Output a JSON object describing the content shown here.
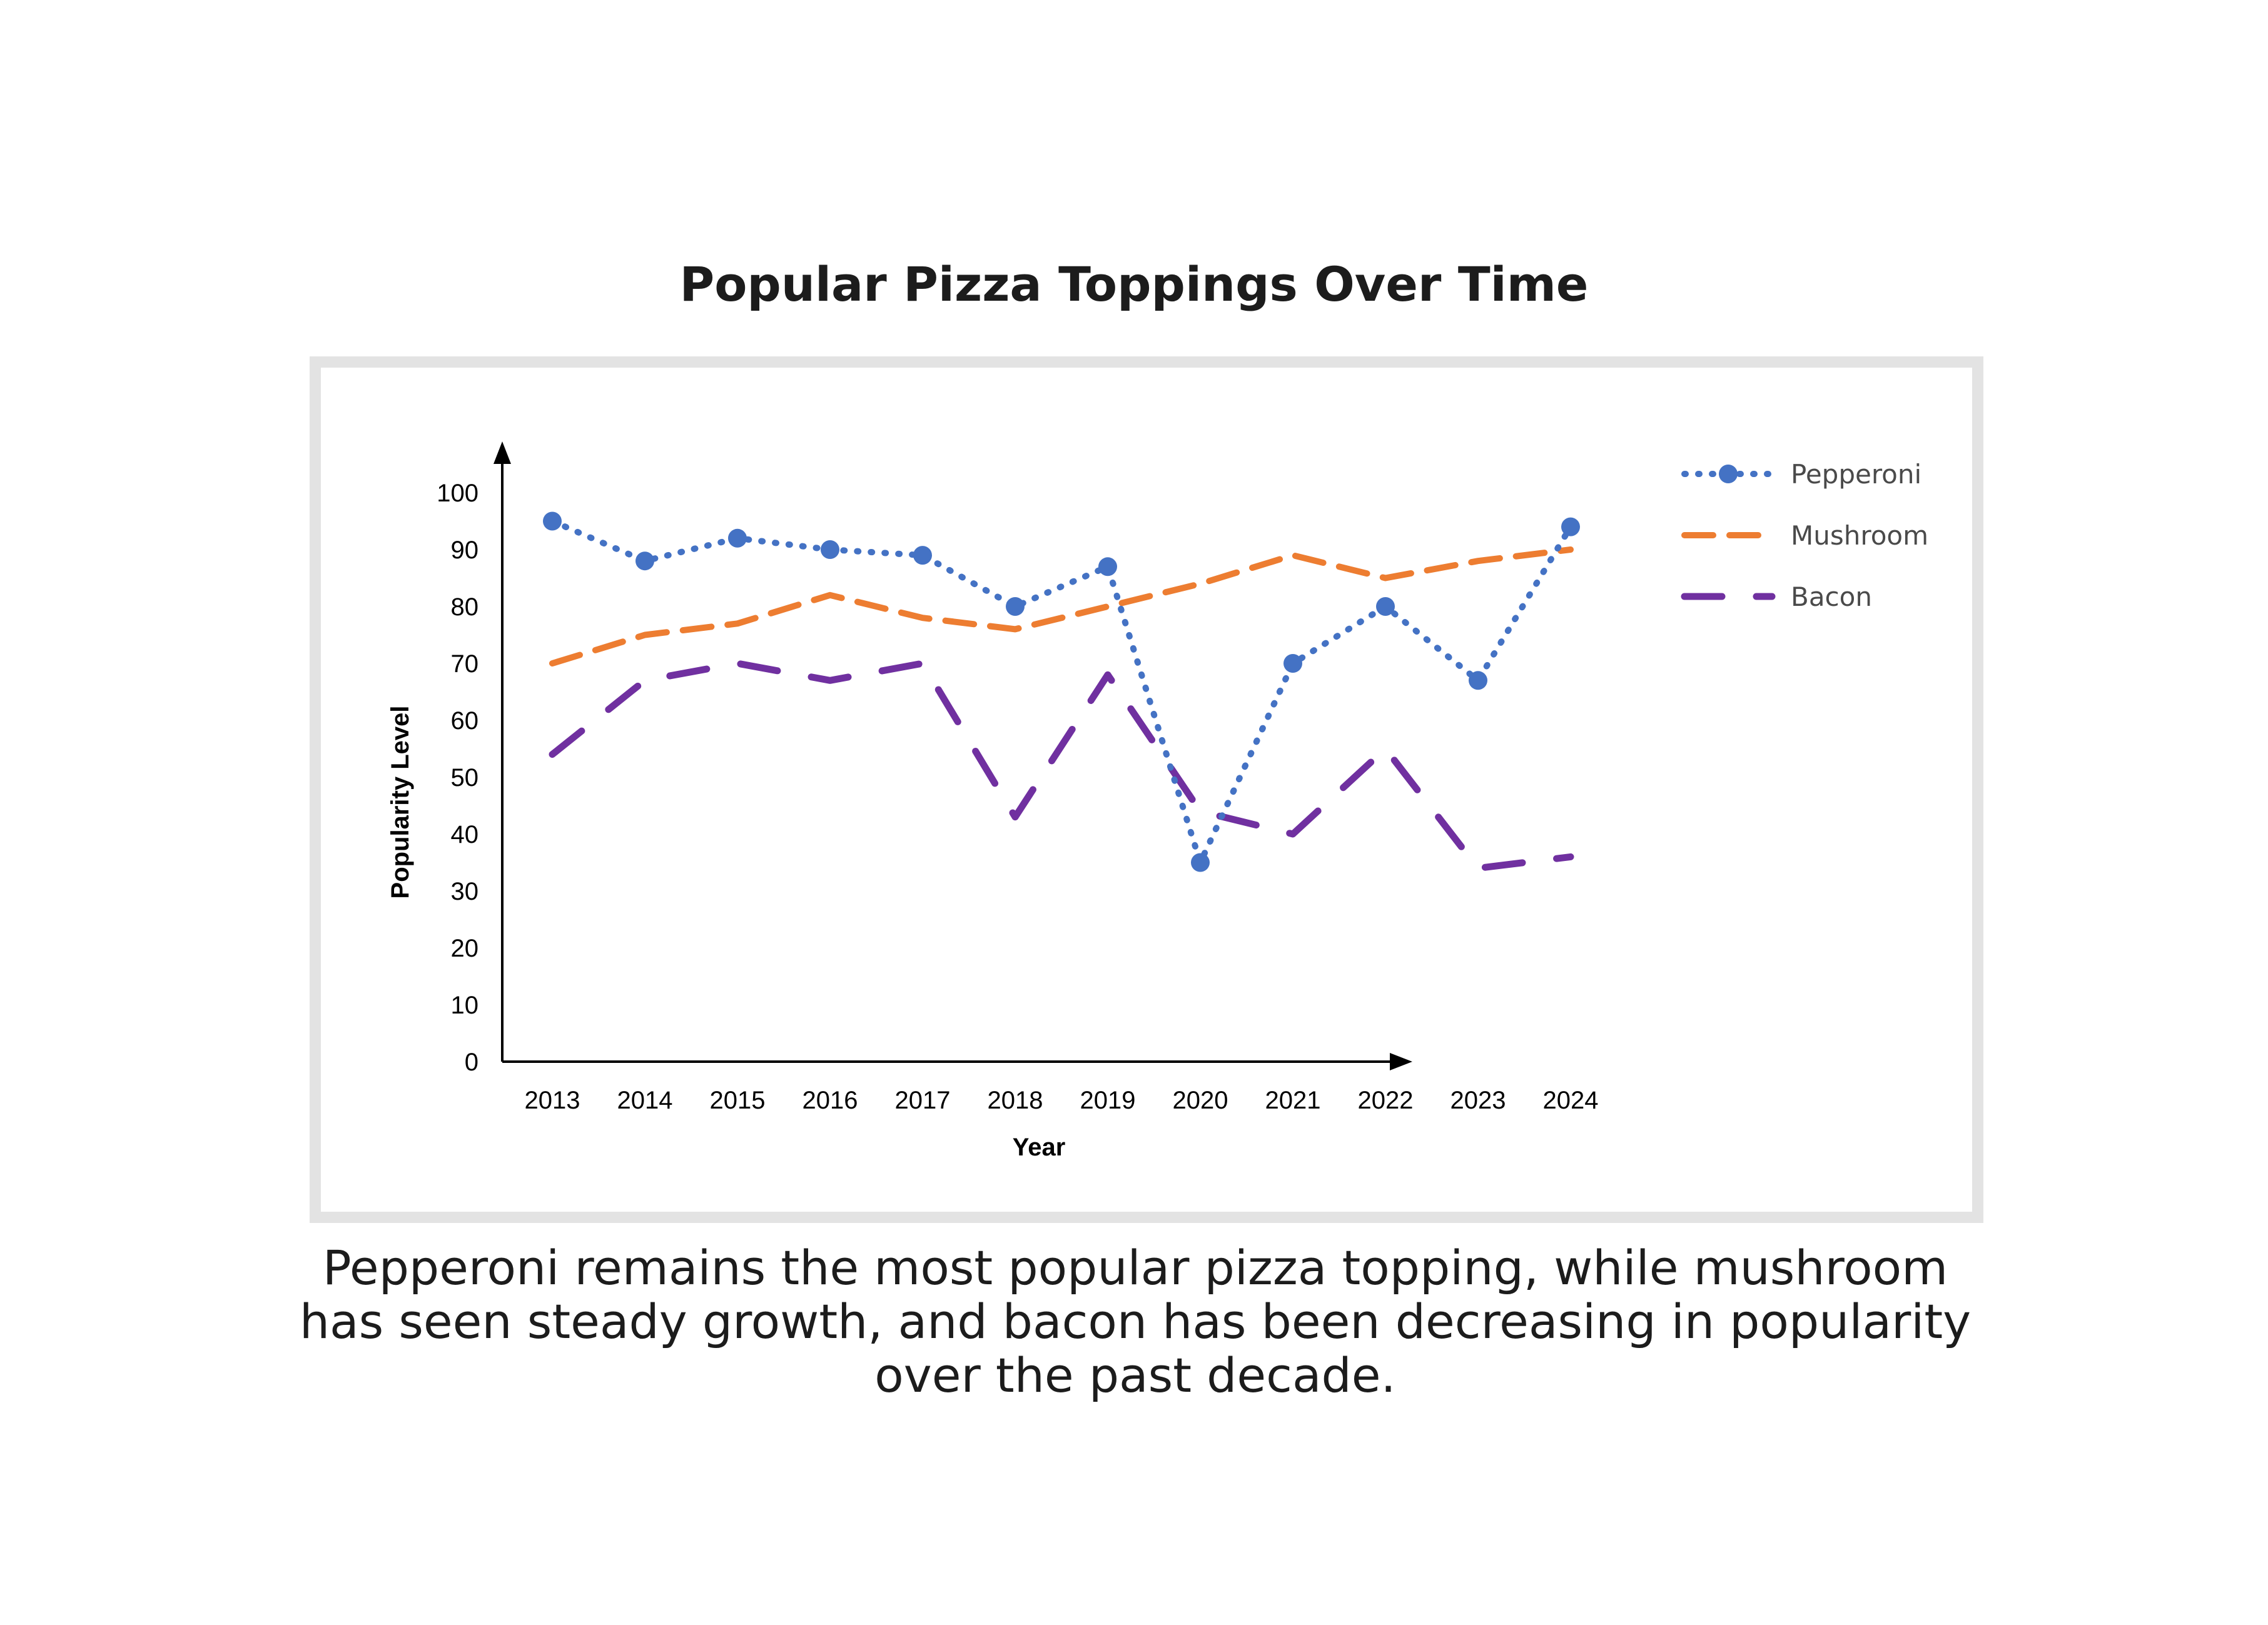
{
  "page": {
    "title": "Popular Pizza Toppings Over Time",
    "caption": "Pepperoni remains the most popular pizza topping, while mushroom has seen steady growth, and bacon has been decreasing in popularity over the past decade."
  },
  "chart_data": {
    "type": "line",
    "xlabel": "Year",
    "ylabel": "Popularity Level",
    "ylim": [
      0,
      100
    ],
    "yticks": [
      0,
      10,
      20,
      30,
      40,
      50,
      60,
      70,
      80,
      90,
      100
    ],
    "categories": [
      "2013",
      "2014",
      "2015",
      "2016",
      "2017",
      "2018",
      "2019",
      "2020",
      "2021",
      "2022",
      "2023",
      "2024"
    ],
    "grid": false,
    "legend_position": "right",
    "series": [
      {
        "name": "Pepperoni",
        "values": [
          95,
          88,
          92,
          90,
          89,
          80,
          87,
          35,
          70,
          80,
          67,
          94
        ],
        "color": "#4472C4",
        "line_style": "dotted",
        "markers": true
      },
      {
        "name": "Mushroom",
        "values": [
          70,
          75,
          77,
          82,
          78,
          76,
          80,
          84,
          89,
          85,
          88,
          90
        ],
        "color": "#ED7D31",
        "line_style": "dashed",
        "markers": false
      },
      {
        "name": "Bacon",
        "values": [
          54,
          67,
          70,
          67,
          70,
          43,
          68,
          44,
          40,
          55,
          34,
          36
        ],
        "color": "#7030A0",
        "line_style": "long-dashed",
        "markers": false
      }
    ]
  }
}
